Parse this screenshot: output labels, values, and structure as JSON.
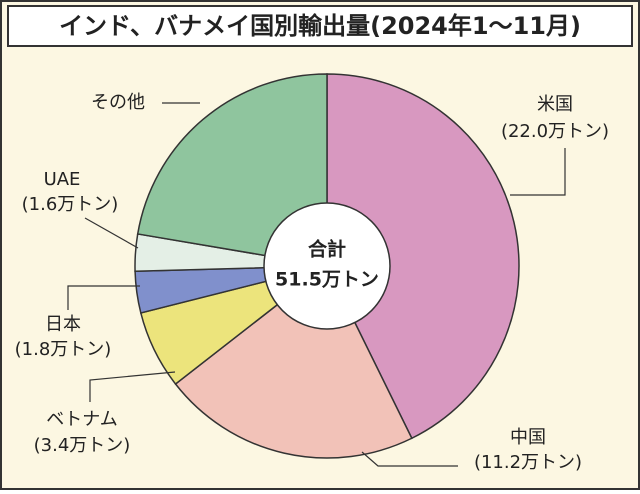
{
  "chart_data": {
    "type": "pie",
    "title": "インド、バナメイ国別輸出量(2024年1～11月)",
    "center_title": "合計",
    "center_label": "51.5万トン",
    "categories": [
      "米国",
      "中国",
      "ベトナム",
      "日本",
      "UAE",
      "その他"
    ],
    "values": [
      22.0,
      11.2,
      3.4,
      1.8,
      1.6,
      11.5
    ],
    "value_labels": [
      "(22.0万トン)",
      "(11.2万トン)",
      "(3.4万トン)",
      "(1.8万トン)",
      "(1.6万トン)",
      null
    ],
    "colors": [
      "#d898c0",
      "#f2c2b8",
      "#ece47c",
      "#8090cc",
      "#e4efe6",
      "#8fc59e"
    ]
  }
}
